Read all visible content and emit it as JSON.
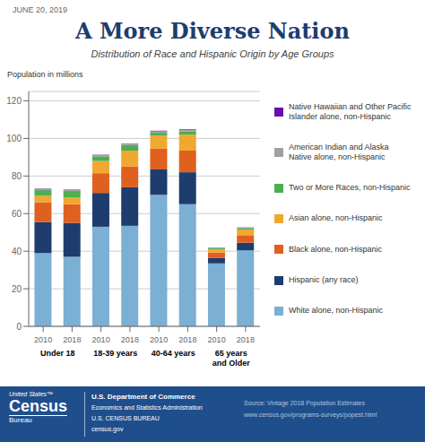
{
  "chart_data": {
    "type": "bar",
    "stacked": true,
    "title": "A More Diverse Nation",
    "subtitle": "Distribution of Race and Hispanic Origin by Age Groups",
    "date_label": "JUNE 20, 2019",
    "y_label": "Population in millions",
    "categories": [
      "2010",
      "2018",
      "2010",
      "2018",
      "2010",
      "2018",
      "2010",
      "2018"
    ],
    "groups": [
      "Under 18",
      "18-39 years",
      "40-64 years",
      "65 years and Older"
    ],
    "series": [
      {
        "name": "Native Hawaiian and Other Pacific\nIslander alone, non-Hispanic",
        "color": "#6A0DAD",
        "values": [
          0.2,
          0.2,
          0.2,
          0.2,
          0.3,
          0.3,
          0.1,
          0.1
        ]
      },
      {
        "name": "American Indian and Alaska\nNative alone, non-Hispanic",
        "color": "#A0A0A0",
        "values": [
          0.6,
          0.6,
          0.6,
          0.6,
          0.8,
          0.8,
          0.3,
          0.3
        ]
      },
      {
        "name": "Two or More Races, non-Hispanic",
        "color": "#4CAF50",
        "values": [
          3.0,
          3.5,
          2.5,
          3.0,
          1.5,
          1.8,
          0.5,
          0.8
        ]
      },
      {
        "name": "Asian alone, non-Hispanic",
        "color": "#F0A830",
        "values": [
          3.5,
          3.5,
          6.5,
          8.5,
          7.0,
          8.5,
          1.8,
          3.0
        ]
      },
      {
        "name": "Black alone, non-Hispanic",
        "color": "#E06020",
        "values": [
          10.5,
          10.0,
          10.5,
          11.0,
          11.0,
          11.5,
          3.0,
          4.0
        ]
      },
      {
        "name": "Hispanic (any race)",
        "color": "#1F3C6E",
        "values": [
          16.5,
          18.0,
          18.0,
          20.5,
          13.5,
          17.0,
          2.8,
          4.0
        ]
      },
      {
        "name": "White alone, non-Hispanic",
        "color": "#7BAFD4",
        "values": [
          39.0,
          37.0,
          53.0,
          53.5,
          70.0,
          65.0,
          33.5,
          40.5
        ]
      }
    ],
    "ylim": [
      0,
      125
    ],
    "yticks": [
      0,
      20,
      40,
      60,
      80,
      100,
      120
    ],
    "grid": true,
    "legend": "right",
    "annotations": [
      "United States™",
      "Census",
      "Bureau",
      "U.S. Department of Commerce",
      "Economics and Statistics Administration",
      "U.S. CENSUS BUREAU",
      "census.gov",
      "Source: Vintage 2018 Population Estimates",
      "www.census.gov/programs-surveys/popest.html"
    ]
  }
}
